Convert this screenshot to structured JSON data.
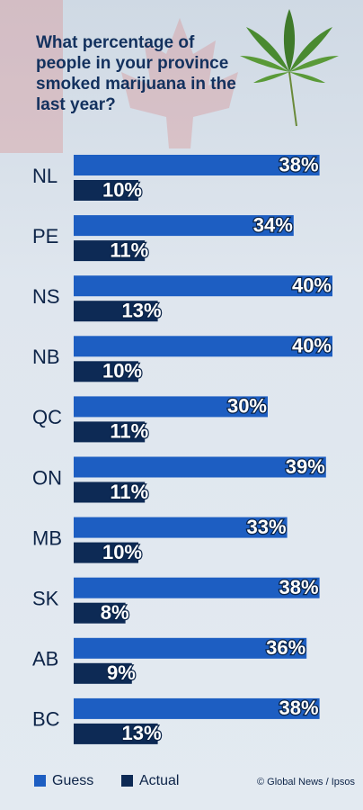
{
  "chart_data": {
    "type": "bar",
    "orientation": "horizontal",
    "title": "What percentage of people in your province smoked marijuana in the last year?",
    "categories": [
      "NL",
      "PE",
      "NS",
      "NB",
      "QC",
      "ON",
      "MB",
      "SK",
      "AB",
      "BC"
    ],
    "series": [
      {
        "name": "Guess",
        "color": "#1d5ec2",
        "values": [
          38,
          34,
          40,
          40,
          30,
          39,
          33,
          38,
          36,
          38
        ],
        "value_labels": [
          "38%",
          "34%",
          "40%",
          "40%",
          "30%",
          "39%",
          "33%",
          "38%",
          "36%",
          "38%"
        ]
      },
      {
        "name": "Actual",
        "color": "#0d2a55",
        "values": [
          10,
          11,
          13,
          10,
          11,
          11,
          10,
          8,
          9,
          13
        ],
        "value_labels": [
          "10%",
          "11%",
          "13%",
          "10%",
          "11%",
          "11%",
          "10%",
          "8%",
          "9%",
          "13%"
        ]
      }
    ],
    "source": "© Global News / Ipsos"
  }
}
